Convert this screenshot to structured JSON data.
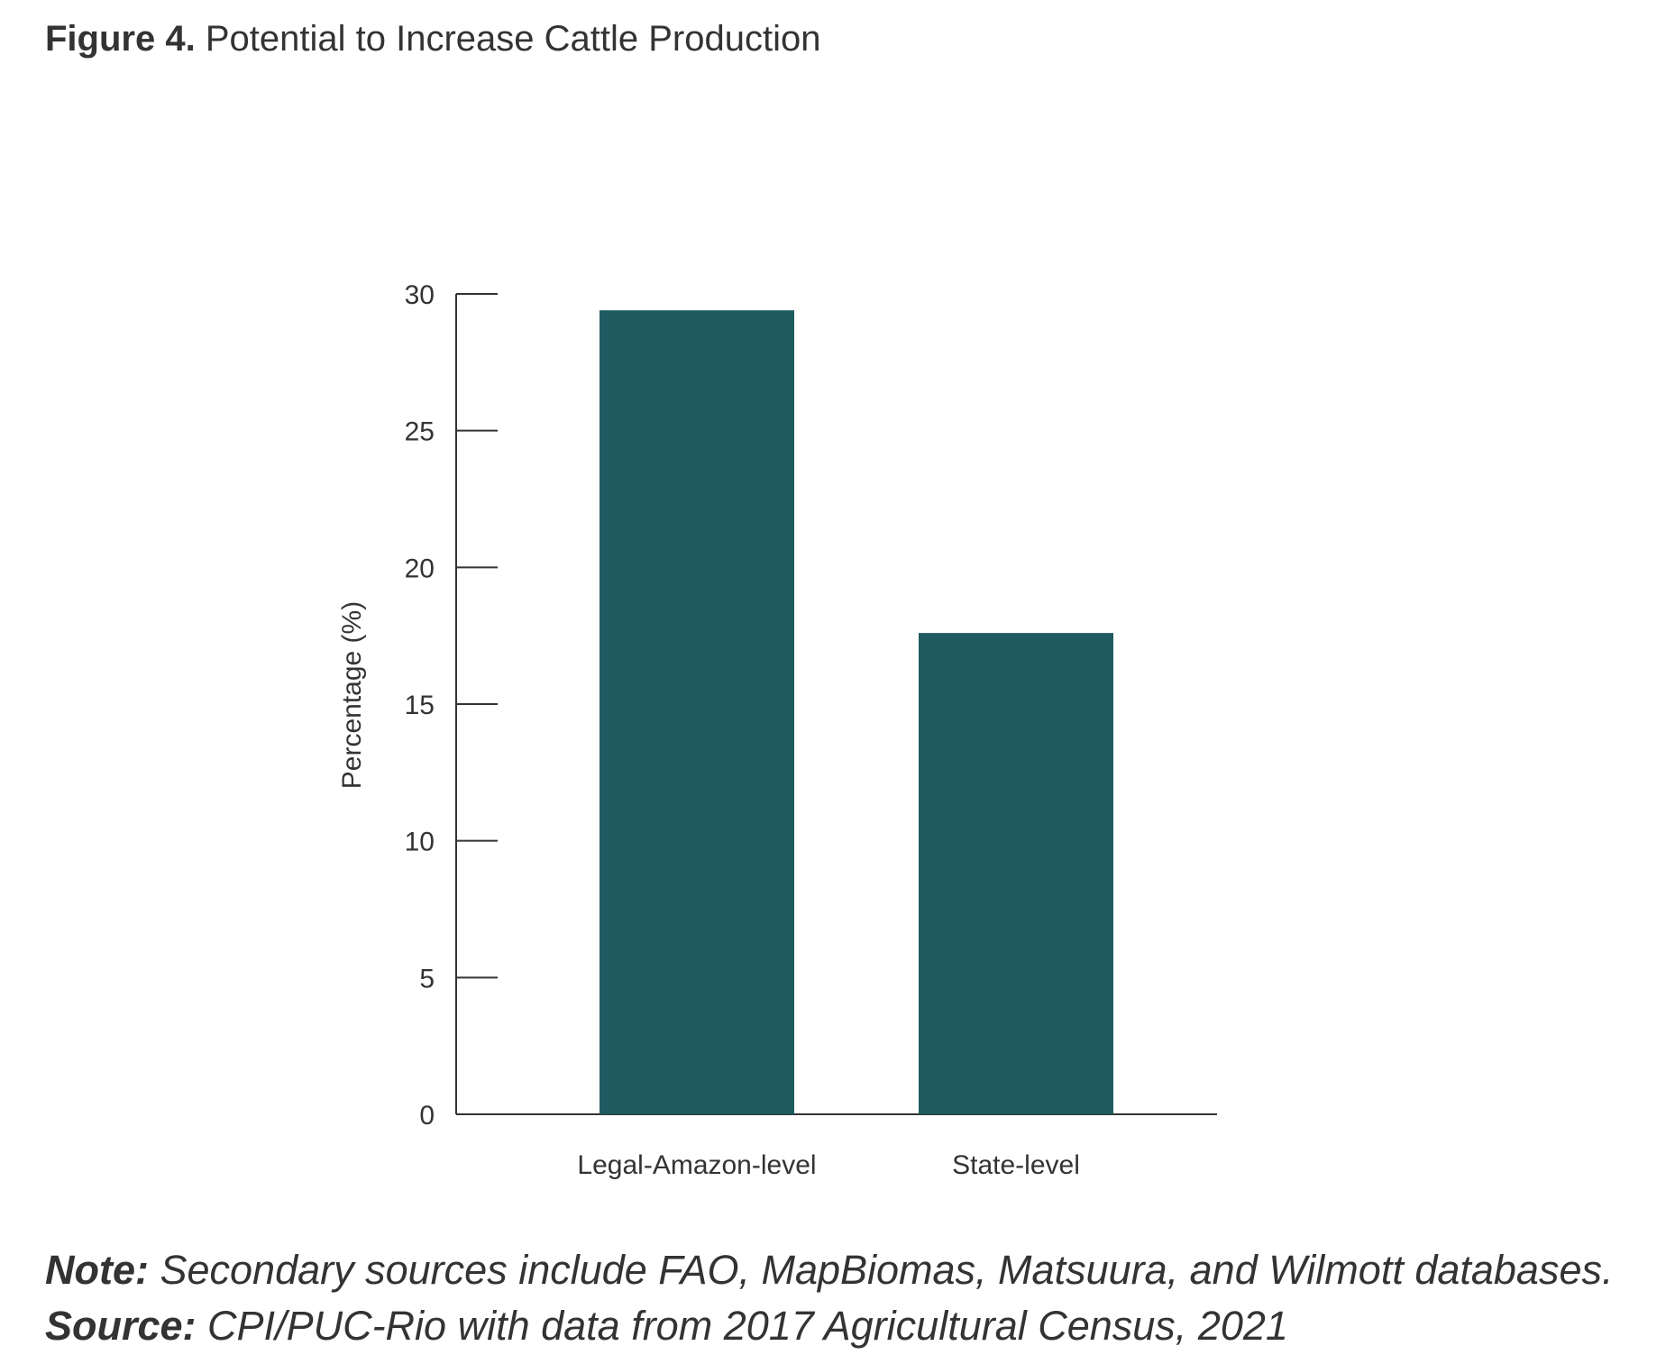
{
  "figure": {
    "label": "Figure 4.",
    "title": "Potential to Increase Cattle Production"
  },
  "colors": {
    "bar": "#1f5a60",
    "axis": "#333333",
    "text": "#333333"
  },
  "chart_data": {
    "type": "bar",
    "categories": [
      "Legal-Amazon-level",
      "State-level"
    ],
    "values": [
      29.4,
      17.6
    ],
    "xlabel": "",
    "ylabel": "Percentage (%)",
    "ylim": [
      0,
      30
    ],
    "yticks": [
      0,
      5,
      10,
      15,
      20,
      25,
      30
    ],
    "grid": false,
    "legend": "none"
  },
  "notes": {
    "note_label": "Note:",
    "note_text": " Secondary sources include FAO, MapBiomas, Matsuura, and Wilmott databases.",
    "source_label": "Source:",
    "source_text": " CPI/PUC-Rio with data from 2017 Agricultural Census, 2021"
  }
}
